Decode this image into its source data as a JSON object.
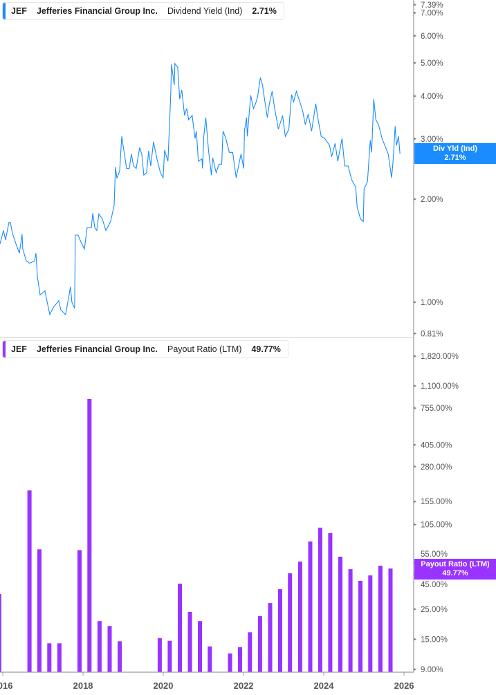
{
  "colors": {
    "yield_line": "#1a8cff",
    "payout_bar": "#9933ff",
    "axis": "#999999",
    "tick_text": "#555555"
  },
  "top_legend": {
    "ticker": "JEF",
    "company": "Jefferies Financial Group Inc.",
    "metric": "Dividend Yield (Ind)",
    "value": "2.71%"
  },
  "bottom_legend": {
    "ticker": "JEF",
    "company": "Jefferies Financial Group Inc.",
    "metric": "Payout Ratio (LTM)",
    "value": "49.77%"
  },
  "top_badge": {
    "label": "Div Yld (Ind)",
    "value": "2.71%"
  },
  "bottom_badge": {
    "label": "Payout Ratio (LTM)",
    "value": "49.77%"
  },
  "chart_data": [
    {
      "type": "line",
      "name": "Dividend Yield (Ind)",
      "yscale": "log",
      "ylim": [
        0.81,
        7.39
      ],
      "yticks": [
        "7.39%",
        "7.00%",
        "6.00%",
        "5.00%",
        "4.00%",
        "3.00%",
        "2.00%",
        "1.00%",
        "0.81%"
      ],
      "ytick_values": [
        7.39,
        7.0,
        6.0,
        5.0,
        4.0,
        3.0,
        2.0,
        1.0,
        0.81
      ],
      "last_value": 2.71,
      "x": [
        "2015-12-07",
        "2016-01-07",
        "2016-01-26",
        "2016-02-26",
        "2016-03-10",
        "2016-03-29",
        "2016-04-30",
        "2016-05-31",
        "2016-06-25",
        "2016-07-01",
        "2016-08-02",
        "2016-09-02",
        "2016-10-16",
        "2016-10-29",
        "2016-11-11",
        "2016-12-06",
        "2017-01-19",
        "2017-01-31",
        "2017-03-04",
        "2017-04-10",
        "2017-05-25",
        "2017-06-12",
        "2017-07-26",
        "2017-08-27",
        "2017-09-08",
        "2017-09-21",
        "2017-10-16",
        "2017-10-22",
        "2017-11-17",
        "2017-12-12",
        "2018-01-13",
        "2018-02-07",
        "2018-03-17",
        "2018-03-30",
        "2018-04-18",
        "2018-05-06",
        "2018-05-25",
        "2018-06-26",
        "2018-07-27",
        "2018-09-09",
        "2018-10-11",
        "2018-10-23",
        "2018-11-05",
        "2018-11-30",
        "2018-12-19",
        "2018-12-31",
        "2019-02-01",
        "2019-02-26",
        "2019-03-17",
        "2019-04-05",
        "2019-04-30",
        "2019-05-31",
        "2019-06-19",
        "2019-07-08",
        "2019-08-02",
        "2019-08-21",
        "2019-09-09",
        "2019-10-04",
        "2019-11-05",
        "2019-12-06",
        "2019-12-31",
        "2020-01-13",
        "2020-02-13",
        "2020-03-09",
        "2020-03-16",
        "2020-04-10",
        "2020-04-16",
        "2020-05-11",
        "2020-05-30",
        "2020-06-18",
        "2020-07-13",
        "2020-08-01",
        "2020-08-20",
        "2020-09-20",
        "2020-10-16",
        "2020-10-28",
        "2020-11-16",
        "2020-12-18",
        "2020-12-24",
        "2021-01-04",
        "2021-01-22",
        "2021-02-16",
        "2021-03-14",
        "2021-03-26",
        "2021-04-27",
        "2021-05-22",
        "2021-06-16",
        "2021-06-28",
        "2021-07-23",
        "2021-08-24",
        "2021-09-24",
        "2021-10-26",
        "2021-11-20",
        "2021-12-09",
        "2022-01-03",
        "2022-01-09",
        "2022-01-28",
        "2022-02-04",
        "2022-03-07",
        "2022-04-01",
        "2022-04-20",
        "2022-05-09",
        "2022-06-03",
        "2022-06-22",
        "2022-07-11",
        "2022-08-05",
        "2022-08-24",
        "2022-09-18",
        "2022-10-07",
        "2022-11-14",
        "2022-12-22",
        "2023-01-16",
        "2023-02-17",
        "2023-03-14",
        "2023-04-02",
        "2023-04-27",
        "2023-05-28",
        "2023-06-22",
        "2023-07-17",
        "2023-08-12",
        "2023-09-12",
        "2023-10-20",
        "2023-11-08",
        "2023-12-09",
        "2024-01-10",
        "2024-02-23",
        "2024-03-13",
        "2024-04-13",
        "2024-05-08",
        "2024-06-15",
        "2024-07-10",
        "2024-08-10",
        "2024-09-11",
        "2024-10-18",
        "2024-10-31",
        "2024-12-01",
        "2024-12-26",
        "2025-01-02",
        "2025-02-02",
        "2025-02-27",
        "2025-03-12",
        "2025-03-31",
        "2025-04-19",
        "2025-05-14",
        "2025-06-14",
        "2025-07-10",
        "2025-08-10",
        "2025-08-29",
        "2025-09-10",
        "2025-09-23",
        "2025-10-12",
        "2025-10-24",
        "2025-11-12",
        "2025-11-25"
      ],
      "y": [
        1.48,
        1.62,
        1.52,
        1.71,
        1.71,
        1.59,
        1.48,
        1.39,
        1.58,
        1.43,
        1.32,
        1.3,
        1.32,
        1.39,
        1.19,
        1.05,
        1.08,
        1.03,
        0.92,
        0.97,
        1.01,
        0.95,
        0.92,
        1.05,
        1.11,
        1.0,
        0.96,
        1.57,
        1.57,
        1.5,
        1.43,
        1.65,
        1.65,
        1.82,
        1.65,
        1.62,
        1.81,
        1.75,
        1.62,
        1.72,
        1.92,
        2.48,
        2.3,
        2.42,
        3.05,
        2.87,
        2.46,
        2.46,
        2.71,
        2.5,
        2.46,
        2.83,
        2.71,
        2.35,
        2.39,
        2.77,
        2.5,
        2.94,
        2.62,
        2.39,
        2.31,
        2.78,
        2.58,
        4.04,
        4.95,
        4.31,
        4.98,
        4.86,
        3.92,
        4.17,
        3.51,
        3.68,
        3.41,
        3.51,
        3.01,
        3.16,
        2.58,
        2.62,
        2.46,
        3.05,
        3.46,
        2.78,
        2.35,
        2.64,
        2.39,
        2.53,
        2.53,
        3.16,
        3.01,
        2.74,
        2.74,
        2.31,
        2.53,
        2.71,
        2.46,
        3.16,
        3.46,
        3.05,
        4.02,
        3.68,
        3.8,
        3.98,
        4.53,
        4.31,
        3.92,
        3.46,
        3.8,
        4.13,
        3.75,
        3.2,
        3.51,
        3.05,
        3.2,
        4.04,
        3.85,
        4.13,
        3.85,
        3.63,
        3.3,
        3.54,
        3.16,
        3.8,
        3.46,
        3.05,
        3.01,
        2.87,
        2.66,
        2.91,
        2.58,
        3.01,
        2.5,
        2.5,
        2.28,
        2.17,
        1.89,
        1.75,
        1.72,
        2.14,
        2.25,
        2.97,
        2.74,
        3.92,
        3.41,
        3.3,
        3.01,
        2.87,
        2.71,
        2.46,
        2.31,
        2.58,
        3.27,
        2.87,
        3.05,
        2.71
      ]
    },
    {
      "type": "bar",
      "name": "Payout Ratio (LTM)",
      "yscale": "log",
      "ylim": [
        8.6,
        1820
      ],
      "yticks": [
        "1,820.00%",
        "1,100.00%",
        "755.00%",
        "405.00%",
        "280.00%",
        "155.00%",
        "105.00%",
        "55.00%",
        "45.00%",
        "25.00%",
        "15.00%",
        "9.00%"
      ],
      "ytick_values": [
        1820,
        1100,
        755,
        405,
        280,
        155,
        105,
        55,
        45,
        25,
        15,
        9
      ],
      "xticks": [
        "2016",
        "2018",
        "2020",
        "2022",
        "2024",
        "2026"
      ],
      "last_value": 49.77,
      "categories": [
        "2015-11-30",
        "2016-08-31",
        "2016-11-30",
        "2017-02-28",
        "2017-05-31",
        "2017-11-30",
        "2018-02-28",
        "2018-05-31",
        "2018-08-31",
        "2018-11-30",
        "2019-11-30",
        "2020-02-29",
        "2020-05-31",
        "2020-08-31",
        "2020-11-30",
        "2021-02-28",
        "2021-08-31",
        "2021-11-30",
        "2022-02-28",
        "2022-05-31",
        "2022-08-31",
        "2022-11-30",
        "2023-02-28",
        "2023-05-31",
        "2023-08-31",
        "2023-11-30",
        "2024-02-29",
        "2024-05-31",
        "2024-08-31",
        "2024-11-30",
        "2025-02-28",
        "2025-05-31",
        "2025-08-31"
      ],
      "values": [
        32.3,
        187,
        69,
        14.0,
        14.0,
        68,
        881,
        20.4,
        18.8,
        14.5,
        15.3,
        14.6,
        38.5,
        23.8,
        20.4,
        13.3,
        11.8,
        13.1,
        16.9,
        22.2,
        27.7,
        35.1,
        45.9,
        56,
        78.7,
        99.5,
        90.6,
        60.8,
        49.2,
        40.4,
        44.3,
        52.2,
        49.77
      ]
    }
  ]
}
